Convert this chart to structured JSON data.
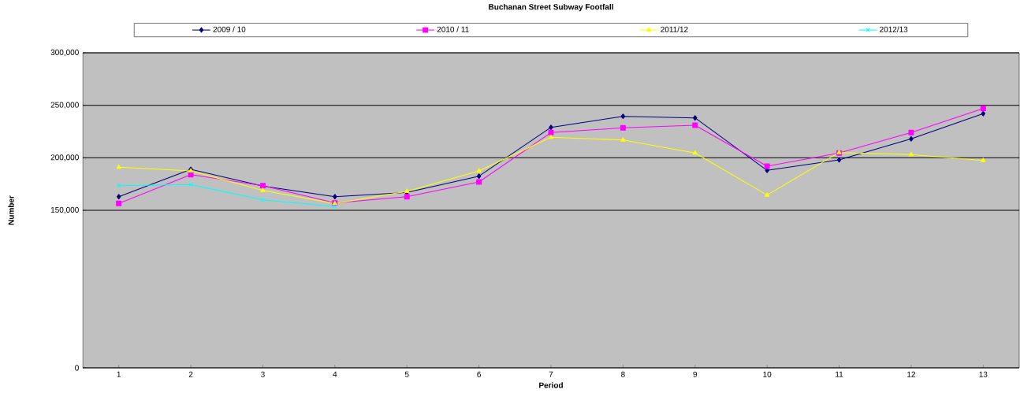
{
  "chart_data": {
    "type": "line",
    "title": "Buchanan Street Subway Footfall",
    "xlabel": "Period",
    "ylabel": "Number",
    "categories": [
      "1",
      "2",
      "3",
      "4",
      "5",
      "6",
      "7",
      "8",
      "9",
      "10",
      "11",
      "12",
      "13"
    ],
    "series": [
      {
        "name": "2009 / 10",
        "color": "#000080",
        "marker": "diamond",
        "values": [
          163000,
          189000,
          173000,
          163000,
          167000,
          182500,
          229000,
          239500,
          238000,
          188000,
          198000,
          218000,
          242000
        ]
      },
      {
        "name": "2010 / 11",
        "color": "#ff00ff",
        "marker": "square",
        "values": [
          156500,
          184000,
          173500,
          157000,
          163000,
          177000,
          224000,
          228500,
          231000,
          192000,
          204500,
          224000,
          247000
        ]
      },
      {
        "name": "2011/12",
        "color": "#ffff00",
        "marker": "triangle",
        "values": [
          191000,
          187500,
          169000,
          156500,
          168000,
          187500,
          219500,
          217000,
          204500,
          164500,
          205000,
          203000,
          197500
        ]
      },
      {
        "name": "2012/13",
        "color": "#00ffff",
        "marker": "cross",
        "values": [
          173500,
          174500,
          160000,
          153500,
          null,
          null,
          null,
          null,
          null,
          null,
          null,
          null,
          null
        ]
      }
    ],
    "ylim": [
      0,
      300000
    ],
    "yticks": [
      0,
      {
        "value": 150000,
        "label": "150,000"
      },
      {
        "value": 200000,
        "label": "200,000"
      },
      {
        "value": 250000,
        "label": "250,000"
      },
      {
        "value": 300000,
        "label": "300,000"
      }
    ],
    "grid": "y",
    "legend": "top",
    "line_style": "solid"
  }
}
